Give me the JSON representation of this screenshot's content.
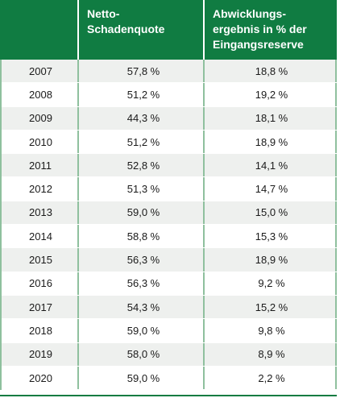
{
  "table": {
    "headers": [
      "",
      "Netto-\nSchadenquote",
      "Abwicklungs-\nergebnis in % der\nEingangsreserve"
    ],
    "rows": [
      [
        "2007",
        "57,8 %",
        "18,8 %"
      ],
      [
        "2008",
        "51,2 %",
        "19,2 %"
      ],
      [
        "2009",
        "44,3 %",
        "18,1 %"
      ],
      [
        "2010",
        "51,2 %",
        "18,9 %"
      ],
      [
        "2011",
        "52,8 %",
        "14,1 %"
      ],
      [
        "2012",
        "51,3 %",
        "14,7 %"
      ],
      [
        "2013",
        "59,0 %",
        "15,0 %"
      ],
      [
        "2014",
        "58,8 %",
        "15,3 %"
      ],
      [
        "2015",
        "56,3 %",
        "18,9 %"
      ],
      [
        "2016",
        "56,3 %",
        "9,2 %"
      ],
      [
        "2017",
        "54,3 %",
        "15,2 %"
      ],
      [
        "2018",
        "59,0 %",
        "9,8 %"
      ],
      [
        "2019",
        "58,0 %",
        "8,9 %"
      ],
      [
        "2020",
        "59,0 %",
        "2,2 %"
      ]
    ]
  },
  "colors": {
    "header_bg": "#107c42",
    "row_odd_bg": "#eef0ee",
    "grid_line": "#8fc09e"
  }
}
